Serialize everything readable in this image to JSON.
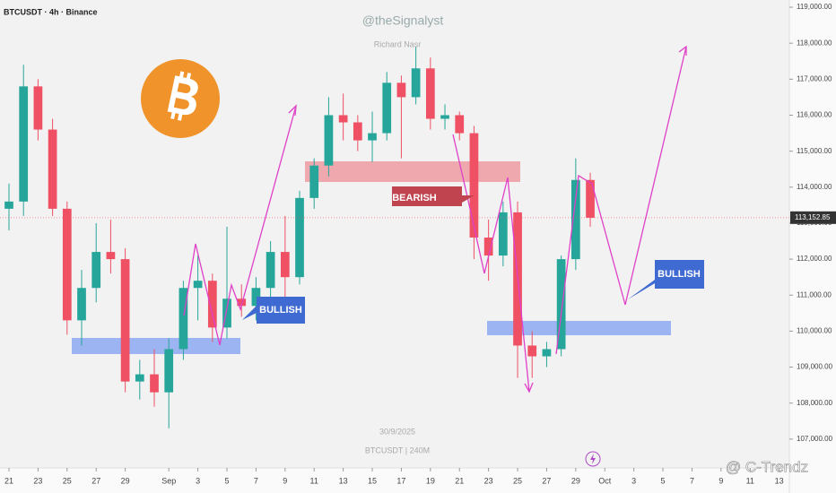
{
  "chart_data": {
    "type": "candlestick",
    "title": "BTCUSDT · 4h · Binance",
    "watermark": "@theSignalyst",
    "author": "Richard Nasr",
    "date_note": "30/9/2025",
    "symbol_note": "BTCUSDT | 240M",
    "site_mark": "@ C-Trendz",
    "annotations": [
      "BEARISH",
      "BULLISH",
      "BULLISH"
    ],
    "up_color": "#26a69a",
    "down_color": "#ef5064",
    "x": [
      0,
      1,
      2,
      3,
      4,
      5,
      6,
      7,
      8,
      9,
      10,
      11,
      12,
      13,
      14,
      15,
      16,
      17,
      18,
      19,
      20,
      21,
      22,
      23,
      24,
      25,
      26,
      27,
      28,
      29,
      30,
      31,
      32,
      33,
      34,
      35,
      36,
      37,
      38,
      39,
      40
    ],
    "open": [
      113400,
      113600,
      116800,
      115600,
      113400,
      110300,
      111200,
      112200,
      112000,
      108600,
      108800,
      108300,
      109500,
      111200,
      111400,
      110100,
      110900,
      110700,
      111200,
      112200,
      111500,
      113700,
      114600,
      116000,
      115800,
      115300,
      115500,
      116900,
      116500,
      117300,
      115900,
      116000,
      115500,
      112600,
      112100,
      113300,
      109600,
      109300,
      109500,
      112000,
      114200
    ],
    "high": [
      114100,
      117400,
      117000,
      115900,
      113600,
      111700,
      113000,
      113100,
      112300,
      109200,
      109500,
      109800,
      111400,
      112100,
      111600,
      112900,
      111300,
      111500,
      112500,
      113200,
      113900,
      114800,
      116500,
      116600,
      116000,
      116100,
      117200,
      117100,
      117900,
      117600,
      116300,
      116100,
      115700,
      113100,
      113600,
      113600,
      110000,
      109700,
      112100,
      114800,
      114400
    ],
    "low": [
      112800,
      113200,
      115300,
      113200,
      109900,
      109600,
      110800,
      111600,
      108300,
      108100,
      107900,
      107300,
      109200,
      110300,
      109700,
      109800,
      110400,
      110300,
      110900,
      110800,
      111300,
      113400,
      114300,
      115300,
      115000,
      114700,
      115300,
      114800,
      116300,
      115600,
      115600,
      115300,
      112000,
      111400,
      111800,
      108700,
      108700,
      109000,
      109300,
      111700,
      112900
    ],
    "close": [
      113600,
      116800,
      115600,
      113400,
      110300,
      111200,
      112200,
      112000,
      108600,
      108800,
      108300,
      109500,
      111200,
      111400,
      110100,
      110900,
      110700,
      111200,
      112200,
      111500,
      113700,
      114600,
      116000,
      115800,
      115300,
      115500,
      116900,
      116500,
      117300,
      115900,
      116000,
      115500,
      112600,
      112100,
      113300,
      109600,
      109300,
      109500,
      112000,
      114200,
      113150
    ],
    "last_price": {
      "value": 113152.85,
      "label": "113,152.85"
    },
    "ylim": [
      106200,
      119200
    ],
    "yticks": [
      {
        "value": 107000,
        "label": "107,000.00"
      },
      {
        "value": 108000,
        "label": "108,000.00"
      },
      {
        "value": 109000,
        "label": "109,000.00"
      },
      {
        "value": 110000,
        "label": "110,000.00"
      },
      {
        "value": 111000,
        "label": "111,000.00"
      },
      {
        "value": 112000,
        "label": "112,000.00"
      },
      {
        "value": 113000,
        "label": "113,000.00"
      },
      {
        "value": 114000,
        "label": "114,000.00"
      },
      {
        "value": 115000,
        "label": "115,000.00"
      },
      {
        "value": 116000,
        "label": "116,000.00"
      },
      {
        "value": 117000,
        "label": "117,000.00"
      },
      {
        "value": 118000,
        "label": "118,000.00"
      },
      {
        "value": 119000,
        "label": "119,000.00"
      }
    ],
    "xlim": [
      -0.617,
      53.7
    ],
    "xticks": [
      {
        "value": 0,
        "label": "21"
      },
      {
        "value": 2,
        "label": "23"
      },
      {
        "value": 4,
        "label": "25"
      },
      {
        "value": 6,
        "label": "27"
      },
      {
        "value": 8,
        "label": "29"
      },
      {
        "value": 11,
        "label": "Sep"
      },
      {
        "value": 13,
        "label": "3"
      },
      {
        "value": 15,
        "label": "5"
      },
      {
        "value": 17,
        "label": "7"
      },
      {
        "value": 19,
        "label": "9"
      },
      {
        "value": 21,
        "label": "11"
      },
      {
        "value": 23,
        "label": "13"
      },
      {
        "value": 25,
        "label": "15"
      },
      {
        "value": 27,
        "label": "17"
      },
      {
        "value": 29,
        "label": "19"
      },
      {
        "value": 31,
        "label": "21"
      },
      {
        "value": 33,
        "label": "23"
      },
      {
        "value": 35,
        "label": "25"
      },
      {
        "value": 37,
        "label": "27"
      },
      {
        "value": 39,
        "label": "29"
      },
      {
        "value": 41,
        "label": "Oct"
      },
      {
        "value": 43,
        "label": "3"
      },
      {
        "value": 45,
        "label": "5"
      },
      {
        "value": 47,
        "label": "7"
      },
      {
        "value": 49,
        "label": "9"
      },
      {
        "value": 51,
        "label": "11"
      },
      {
        "value": 53,
        "label": "13"
      }
    ]
  }
}
